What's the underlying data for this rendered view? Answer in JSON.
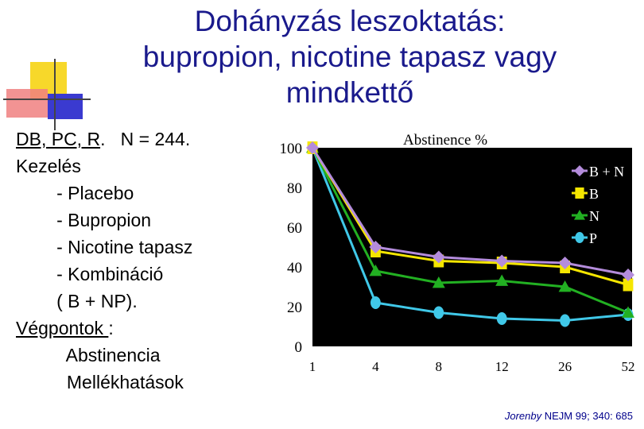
{
  "title": {
    "line1": "Dohányzás leszoktatás:",
    "line2": "bupropion, nicotine tapasz vagy",
    "line3": "mindkettő"
  },
  "left": {
    "line1_ul": "DB, PC, R",
    "line1_rest": ".   N = 244.",
    "line2": "Kezelés",
    "line3": "        - Placebo",
    "line4": "        - Bupropion",
    "line5": "        - Nicotine tapasz",
    "line6": "        - Kombináció",
    "line7": "        ( B + NP).",
    "line8_ul": "Végpontok ",
    "line8_rest": ":",
    "line9": "          Abstinencia",
    "line10": "          Mellékhatások"
  },
  "citation": {
    "italic": "Jorenby",
    "rest": "  NEJM 99; 340: 685"
  },
  "chart_data": {
    "type": "line",
    "title": "Abstinence %",
    "xlabel": "",
    "ylabel": "",
    "x": [
      "1",
      "4",
      "8",
      "12",
      "26",
      "52"
    ],
    "ylim": [
      0,
      100
    ],
    "yticks": [
      0,
      20,
      40,
      60,
      80,
      100
    ],
    "legend_position": "top-right",
    "grid": false,
    "series": [
      {
        "name": "B + N",
        "color": "#b48cdc",
        "marker": "diamond",
        "values": [
          100,
          50,
          45,
          43,
          42,
          36
        ]
      },
      {
        "name": "B",
        "color": "#f5e600",
        "marker": "square",
        "values": [
          100,
          48,
          43,
          42,
          40,
          31
        ]
      },
      {
        "name": "N",
        "color": "#22b022",
        "marker": "triangle",
        "values": [
          100,
          38,
          32,
          33,
          30,
          17
        ]
      },
      {
        "name": "P",
        "color": "#40c8e8",
        "marker": "circle",
        "values": [
          100,
          22,
          17,
          14,
          13,
          16
        ]
      }
    ]
  }
}
